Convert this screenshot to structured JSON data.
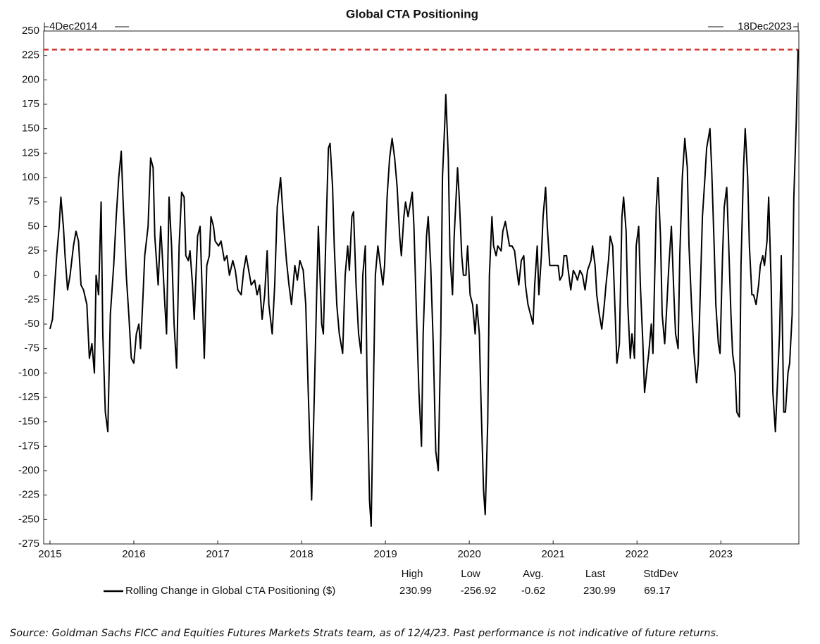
{
  "chart_data": {
    "type": "line",
    "title": "Global CTA Positioning",
    "start_label": "4Dec2014",
    "end_label": "18Dec2023",
    "xlim": [
      2014.925,
      2023.93
    ],
    "xticks": [
      2015,
      2016,
      2017,
      2018,
      2019,
      2020,
      2021,
      2022,
      2023
    ],
    "ylim": [
      -275,
      250
    ],
    "yticks": [
      -275,
      -250,
      -225,
      -200,
      -175,
      -150,
      -125,
      -100,
      -75,
      -50,
      -25,
      0,
      25,
      50,
      75,
      100,
      125,
      150,
      175,
      200,
      225,
      250
    ],
    "grid": false,
    "highline_color": "#d9302c",
    "x": [
      2015.0,
      2015.03,
      2015.08,
      2015.11,
      2015.13,
      2015.16,
      2015.18,
      2015.21,
      2015.24,
      2015.28,
      2015.31,
      2015.34,
      2015.37,
      2015.4,
      2015.44,
      2015.47,
      2015.5,
      2015.53,
      2015.55,
      2015.58,
      2015.61,
      2015.63,
      2015.66,
      2015.69,
      2015.72,
      2015.76,
      2015.79,
      2015.82,
      2015.85,
      2015.87,
      2015.91,
      2015.94,
      2015.97,
      2016.0,
      2016.03,
      2016.06,
      2016.08,
      2016.11,
      2016.13,
      2016.17,
      2016.2,
      2016.23,
      2016.25,
      2016.29,
      2016.32,
      2016.34,
      2016.37,
      2016.39,
      2016.42,
      2016.45,
      2016.48,
      2016.51,
      2016.54,
      2016.57,
      2016.6,
      2016.62,
      2016.65,
      2016.67,
      2016.7,
      2016.72,
      2016.76,
      2016.79,
      2016.82,
      2016.84,
      2016.87,
      2016.9,
      2016.92,
      2016.95,
      2016.97,
      2017.01,
      2017.04,
      2017.08,
      2017.11,
      2017.14,
      2017.18,
      2017.21,
      2017.24,
      2017.28,
      2017.31,
      2017.34,
      2017.37,
      2017.4,
      2017.44,
      2017.47,
      2017.5,
      2017.53,
      2017.56,
      2017.59,
      2017.61,
      2017.65,
      2017.68,
      2017.71,
      2017.75,
      2017.78,
      2017.82,
      2017.85,
      2017.88,
      2017.92,
      2017.95,
      2017.98,
      2018.02,
      2018.05,
      2018.08,
      2018.12,
      2018.15,
      2018.18,
      2018.2,
      2018.24,
      2018.26,
      2018.29,
      2018.32,
      2018.34,
      2018.37,
      2018.39,
      2018.42,
      2018.45,
      2018.49,
      2018.52,
      2018.55,
      2018.57,
      2018.6,
      2018.62,
      2018.65,
      2018.68,
      2018.71,
      2018.73,
      2018.76,
      2018.78,
      2018.81,
      2018.83,
      2018.86,
      2018.88,
      2018.91,
      2018.94,
      2018.97,
      2018.99,
      2019.02,
      2019.05,
      2019.08,
      2019.11,
      2019.14,
      2019.17,
      2019.19,
      2019.22,
      2019.24,
      2019.27,
      2019.29,
      2019.32,
      2019.34,
      2019.37,
      2019.4,
      2019.43,
      2019.45,
      2019.49,
      2019.51,
      2019.54,
      2019.57,
      2019.6,
      2019.63,
      2019.66,
      2019.68,
      2019.71,
      2019.72,
      2019.75,
      2019.77,
      2019.8,
      2019.82,
      2019.86,
      2019.88,
      2019.91,
      2019.93,
      2019.96,
      2019.98,
      2020.01,
      2020.04,
      2020.07,
      2020.09,
      2020.12,
      2020.14,
      2020.17,
      2020.19,
      2020.22,
      2020.24,
      2020.27,
      2020.29,
      2020.32,
      2020.34,
      2020.38,
      2020.4,
      2020.43,
      2020.45,
      2020.48,
      2020.51,
      2020.54,
      2020.56,
      2020.59,
      2020.62,
      2020.65,
      2020.67,
      2020.7,
      2020.73,
      2020.76,
      2020.78,
      2020.81,
      2020.83,
      2020.86,
      2020.88,
      2020.91,
      2020.93,
      2020.96,
      2020.99,
      2021.03,
      2021.06,
      2021.08,
      2021.11,
      2021.13,
      2021.16,
      2021.18,
      2021.21,
      2021.24,
      2021.27,
      2021.29,
      2021.32,
      2021.35,
      2021.38,
      2021.41,
      2021.45,
      2021.47,
      2021.5,
      2021.52,
      2021.55,
      2021.58,
      2021.61,
      2021.63,
      2021.66,
      2021.68,
      2021.71,
      2021.74,
      2021.76,
      2021.79,
      2021.82,
      2021.84,
      2021.87,
      2021.89,
      2021.92,
      2021.94,
      2021.97,
      2021.99,
      2022.02,
      2022.04,
      2022.07,
      2022.09,
      2022.12,
      2022.14,
      2022.17,
      2022.19,
      2022.23,
      2022.25,
      2022.28,
      2022.3,
      2022.33,
      2022.35,
      2022.38,
      2022.41,
      2022.44,
      2022.46,
      2022.49,
      2022.51,
      2022.54,
      2022.57,
      2022.6,
      2022.62,
      2022.65,
      2022.68,
      2022.71,
      2022.73,
      2022.76,
      2022.78,
      2022.81,
      2022.83,
      2022.87,
      2022.89,
      2022.92,
      2022.94,
      2022.97,
      2022.99,
      2023.02,
      2023.04,
      2023.07,
      2023.09,
      2023.12,
      2023.14,
      2023.17,
      2023.19,
      2023.22,
      2023.24,
      2023.27,
      2023.29,
      2023.32,
      2023.34,
      2023.37,
      2023.39,
      2023.42,
      2023.45,
      2023.47,
      2023.5,
      2023.52,
      2023.55,
      2023.57,
      2023.6,
      2023.62,
      2023.65,
      2023.67,
      2023.7,
      2023.72,
      2023.75,
      2023.77,
      2023.8,
      2023.82,
      2023.85,
      2023.87,
      2023.9,
      2023.92
    ],
    "series": [
      {
        "name": "Rolling Change in Global CTA Positioning ($)",
        "color": "#000000",
        "values": [
          -55,
          -45,
          20,
          50,
          80,
          50,
          20,
          -15,
          0,
          30,
          45,
          35,
          -10,
          -15,
          -30,
          -85,
          -70,
          -100,
          0,
          -20,
          75,
          -60,
          -140,
          -160,
          -40,
          10,
          60,
          100,
          127,
          80,
          0,
          -40,
          -85,
          -90,
          -60,
          -50,
          -75,
          -20,
          20,
          50,
          120,
          110,
          40,
          -10,
          50,
          20,
          -30,
          -60,
          80,
          30,
          -50,
          -95,
          30,
          85,
          80,
          20,
          15,
          25,
          -10,
          -45,
          40,
          50,
          -30,
          -85,
          10,
          20,
          60,
          50,
          35,
          30,
          35,
          15,
          20,
          0,
          15,
          5,
          -15,
          -20,
          5,
          20,
          5,
          -10,
          -5,
          -20,
          -10,
          -45,
          -20,
          25,
          -30,
          -60,
          -10,
          70,
          100,
          60,
          15,
          -10,
          -30,
          10,
          -5,
          15,
          5,
          -30,
          -120,
          -230,
          -130,
          -20,
          50,
          -50,
          -60,
          40,
          130,
          135,
          90,
          30,
          -30,
          -60,
          -80,
          0,
          30,
          5,
          60,
          65,
          -10,
          -60,
          -80,
          0,
          30,
          -100,
          -230,
          -256.92,
          -100,
          0,
          30,
          10,
          -10,
          10,
          80,
          120,
          140,
          120,
          90,
          40,
          20,
          60,
          75,
          60,
          70,
          85,
          50,
          -40,
          -120,
          -175,
          -60,
          40,
          60,
          10,
          -70,
          -180,
          -200,
          -60,
          100,
          160,
          185,
          120,
          20,
          -20,
          40,
          110,
          80,
          20,
          0,
          0,
          30,
          -20,
          -30,
          -60,
          -30,
          -60,
          -130,
          -220,
          -245,
          -150,
          0,
          60,
          30,
          20,
          30,
          25,
          45,
          55,
          45,
          30,
          30,
          25,
          10,
          -10,
          15,
          20,
          -10,
          -30,
          -40,
          -50,
          -10,
          30,
          -20,
          20,
          60,
          90,
          50,
          10,
          10,
          10,
          10,
          -5,
          0,
          20,
          20,
          5,
          -15,
          5,
          0,
          -5,
          5,
          0,
          -15,
          5,
          15,
          30,
          10,
          -20,
          -40,
          -55,
          -30,
          -10,
          15,
          40,
          30,
          -40,
          -90,
          -70,
          60,
          80,
          45,
          -30,
          -85,
          -60,
          -85,
          30,
          50,
          -10,
          -70,
          -120,
          -95,
          -80,
          -50,
          -80,
          70,
          100,
          40,
          -40,
          -70,
          -40,
          10,
          50,
          -20,
          -60,
          -75,
          20,
          100,
          140,
          110,
          30,
          -30,
          -80,
          -110,
          -90,
          0,
          60,
          100,
          130,
          150,
          110,
          30,
          -30,
          -70,
          -80,
          20,
          70,
          90,
          40,
          -40,
          -80,
          -100,
          -140,
          -145,
          10,
          110,
          150,
          100,
          30,
          -20,
          -20,
          -30,
          -10,
          10,
          20,
          10,
          35,
          80,
          -10,
          -120,
          -160,
          -120,
          -60,
          20,
          -140,
          -140,
          -100,
          -90,
          -40,
          80,
          160,
          230.99
        ]
      }
    ],
    "stats": [
      {
        "label": "High",
        "value": 230.99
      },
      {
        "label": "Low",
        "value": -256.92
      },
      {
        "label": "Avg.",
        "value": -0.62
      },
      {
        "label": "Last",
        "value": 230.99
      },
      {
        "label": "StdDev",
        "value": 69.17
      }
    ]
  },
  "footnote": "Source: Goldman Sachs FICC and Equities Futures Markets Strats team, as of 12/4/23. Past performance is not indicative of future returns."
}
